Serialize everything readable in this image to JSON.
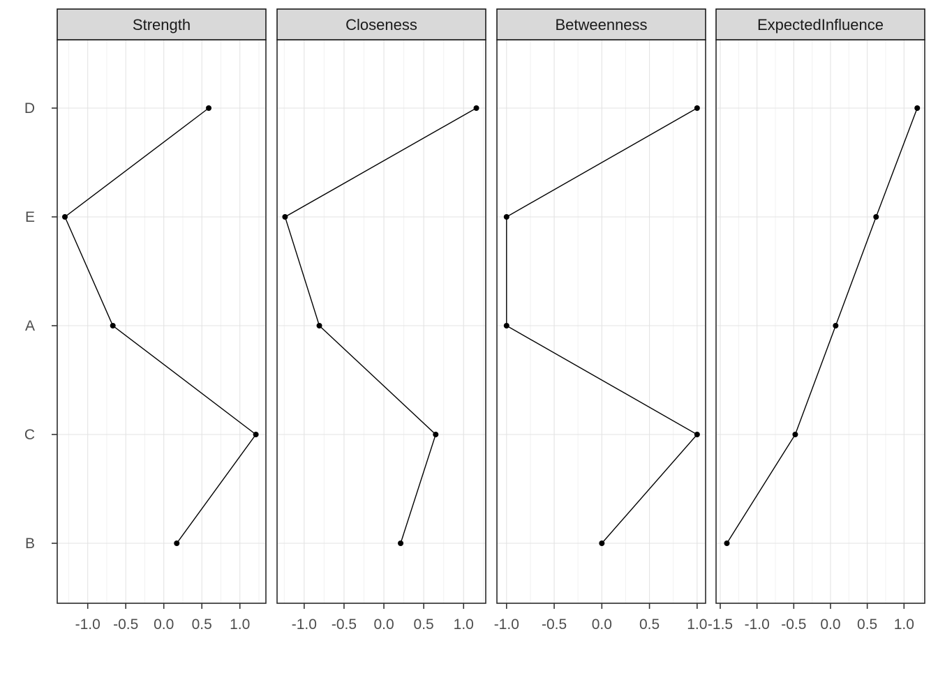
{
  "chart_data": {
    "type": "line",
    "subtype": "faceted-centrality-dot-line-plot",
    "orientation": "horizontal",
    "title": "",
    "xlabel": "",
    "ylabel": "",
    "legend_position": "none",
    "grid": "vertical major+minor gridlines every 0.25 units; one horizontal gridline per category row",
    "categories_top_to_bottom": [
      "D",
      "E",
      "A",
      "C",
      "B"
    ],
    "line_order_bottom_to_top": [
      "B",
      "C",
      "A",
      "E",
      "D"
    ],
    "panels": [
      {
        "title": "Strength",
        "xlim": [
          -1.401,
          1.342
        ],
        "tick_labels": [
          "-1.0",
          "-0.5",
          "0.0",
          "0.5",
          "1.0"
        ],
        "values": {
          "D": 0.59,
          "E": -1.3,
          "A": -0.67,
          "C": 1.21,
          "B": 0.17
        }
      },
      {
        "title": "Closeness",
        "xlim": [
          -1.34,
          1.278
        ],
        "tick_labels": [
          "-1.0",
          "-0.5",
          "0.0",
          "0.5",
          "1.0"
        ],
        "values": {
          "D": 1.16,
          "E": -1.24,
          "A": -0.81,
          "C": 0.65,
          "B": 0.21
        }
      },
      {
        "title": "Betweenness",
        "xlim": [
          -1.101,
          1.089
        ],
        "tick_labels": [
          "-1.0",
          "-0.5",
          "0.0",
          "0.5",
          "1.0"
        ],
        "values": {
          "D": 1.0,
          "E": -1.0,
          "A": -1.0,
          "C": 1.0,
          "B": 0.0
        }
      },
      {
        "title": "ExpectedInfluence",
        "xlim": [
          -1.557,
          1.282
        ],
        "tick_labels": [
          "-1.5",
          "-1.0",
          "-0.5",
          "0.0",
          "0.5",
          "1.0"
        ],
        "values": {
          "D": 1.18,
          "E": 0.62,
          "A": 0.07,
          "C": -0.48,
          "B": -1.41
        }
      }
    ],
    "style": {
      "background": "#FFFFFF",
      "point_color": "#000000",
      "line_color": "#000000",
      "strip_fill": "#D9D9D9",
      "strip_border_color": "#1A1A1A",
      "strip_text_color": "#1A1A1A",
      "panel_border_color": "#2A2A2A",
      "major_grid_color": "#E3E3E3",
      "minor_grid_color": "#F2F2F2",
      "axis_text_color": "#4D4D4D",
      "tick_mark_color": "#333333"
    }
  }
}
